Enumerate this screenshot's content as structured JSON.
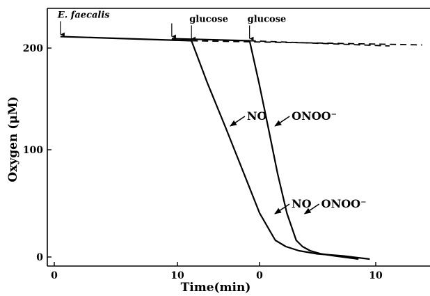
{
  "chart_data": {
    "type": "line",
    "xlabel": "Time(min)",
    "ylabel": "Oxygen (μM)",
    "ylim": [
      0,
      230
    ],
    "yticks": [
      "0",
      "100",
      "200"
    ],
    "grid": false,
    "panels": [
      {
        "xlim": [
          -0.3,
          14.3
        ],
        "xticks": [
          "0",
          "10"
        ],
        "tick_values": [
          0,
          10
        ],
        "series": [
          {
            "style": "solid",
            "x": [
              0.2,
              5.2,
              5.8,
              6.5,
              7.2,
              7.8,
              8.4,
              8.8,
              9.3,
              10.0,
              11.0,
              12.0
            ],
            "y": [
              211,
              207,
              167,
              124,
              80,
              42,
              16,
              10,
              6,
              3,
              1,
              -2
            ]
          },
          {
            "style": "dashed",
            "x": [
              5.2,
              14.0
            ],
            "y": [
              207,
              203
            ]
          }
        ],
        "markers": [
          {
            "label": "E. faecalis",
            "italic": true,
            "x": 0.2,
            "y": 211
          },
          {
            "label": "glucose",
            "italic": false,
            "x": 5.2,
            "y": 207
          }
        ],
        "annotations": [
          {
            "label": "NO",
            "x": 6.6,
            "y": 124
          },
          {
            "label": "NO",
            "x": 8.3,
            "y": 40
          }
        ]
      },
      {
        "xlim": [
          -9.8,
          14.8
        ],
        "xticks": [
          "0",
          "10"
        ],
        "tick_values": [
          0,
          10
        ],
        "series": [
          {
            "style": "solid",
            "x": [
              -1.8,
              3.2,
              3.8,
              4.4,
              5.0,
              5.6,
              6.2,
              6.6,
              7.1,
              7.8,
              8.7,
              10.2
            ],
            "y": [
              209,
              207,
              167,
              124,
              80,
              42,
              16,
              10,
              6,
              3,
              1,
              -2
            ]
          },
          {
            "style": "dashed",
            "x": [
              3.2,
              12.2
            ],
            "y": [
              207,
              202
            ]
          }
        ],
        "markers": [
          {
            "label": "",
            "italic": false,
            "x": -1.8,
            "y": 209
          },
          {
            "label": "glucose",
            "italic": false,
            "x": 3.2,
            "y": 207
          }
        ],
        "annotations": [
          {
            "label": "ONOO⁻",
            "x": 4.7,
            "y": 124
          },
          {
            "label": "ONOO⁻",
            "x": 6.6,
            "y": 40
          }
        ]
      }
    ]
  }
}
